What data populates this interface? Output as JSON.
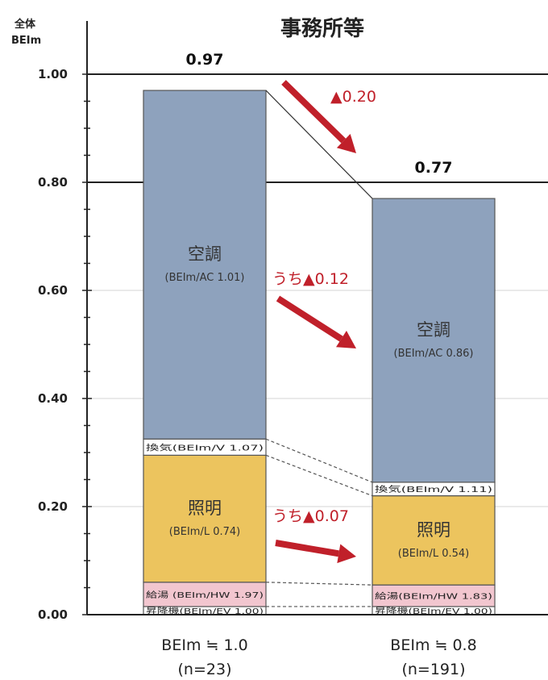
{
  "chart_data": {
    "type": "bar",
    "stacked": true,
    "title": "事務所等",
    "ylabel": [
      "全体",
      "BEIm"
    ],
    "ylim": [
      0,
      1.0
    ],
    "yticks": [
      "0.00",
      "0.20",
      "0.40",
      "0.60",
      "0.80",
      "1.00"
    ],
    "yticks_values": [
      0,
      0.2,
      0.4,
      0.6,
      0.8,
      1.0
    ],
    "reference_lines": [
      1.0,
      0.8
    ],
    "grid": "horizontal",
    "categories": [
      "BEIm ≒ 1.0",
      "BEIm ≒ 0.8"
    ],
    "category_sublabels": [
      "(n=23)",
      "(n=191)"
    ],
    "totals": [
      0.97,
      0.77
    ],
    "total_labels": [
      "0.97",
      "0.77"
    ],
    "series": [
      {
        "name": "昇降機",
        "color": "#ffffff",
        "values": [
          0.015,
          0.015
        ],
        "labels": [
          "昇降機(BEIm/EV 1.00)",
          "昇降機(BEIm/EV 1.00)"
        ]
      },
      {
        "name": "給湯",
        "color": "#f2c6cf",
        "values": [
          0.045,
          0.04
        ],
        "labels": [
          "給湯 (BEIm/HW 1.97)",
          "給湯(BEIm/HW 1.83)"
        ]
      },
      {
        "name": "照明",
        "color": "#ecc45e",
        "values": [
          0.235,
          0.165
        ],
        "labels": [
          "照明",
          "照明"
        ],
        "sublabels": [
          "(BEIm/L 0.74)",
          "(BEIm/L 0.54)"
        ]
      },
      {
        "name": "換気",
        "color": "#ffffff",
        "values": [
          0.03,
          0.025
        ],
        "labels": [
          "換気(BEIm/V 1.07)",
          "換気(BEIm/V 1.11)"
        ]
      },
      {
        "name": "空調",
        "color": "#8ea2bd",
        "values": [
          0.645,
          0.525
        ],
        "labels": [
          "空調",
          "空調"
        ],
        "sublabels": [
          "(BEIm/AC 1.01)",
          "(BEIm/AC 0.86)"
        ]
      }
    ],
    "annotations": [
      {
        "text": "▲0.20",
        "target": "total"
      },
      {
        "text": "うち▲0.12",
        "target": "空調"
      },
      {
        "text": "うち▲0.07",
        "target": "照明"
      }
    ],
    "colors": {
      "axis": "#222222",
      "delta": "#c0202a",
      "edge": "#555555"
    }
  }
}
